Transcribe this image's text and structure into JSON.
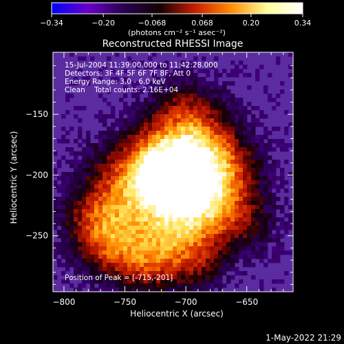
{
  "chart_data": {
    "type": "heatmap",
    "title": "Reconstructed RHESSI Image",
    "xlabel": "Heliocentric X (arcsec)",
    "ylabel": "Heliocentric Y (arcsec)",
    "xlim": [
      -809,
      -612
    ],
    "ylim": [
      -296,
      -99
    ],
    "x_ticks": [
      -800,
      -750,
      -700,
      -650
    ],
    "x_tick_labels": [
      "−800",
      "−750",
      "−700",
      "−650"
    ],
    "y_ticks": [
      -150,
      -200,
      -250
    ],
    "y_tick_labels": [
      "−150",
      "−200",
      "−250"
    ],
    "colorbar": {
      "min": -0.34,
      "max": 0.34,
      "ticks": [
        -0.34,
        -0.2,
        -0.068,
        0.068,
        0.2,
        0.34
      ],
      "tick_labels": [
        "−0.34",
        "−0.20",
        "−0.068",
        "0.068",
        "0.20",
        "0.34"
      ],
      "unit_text": "(photons cm⁻² s⁻¹ asec⁻²)",
      "colors": [
        "#0000ff",
        "#6a00c8",
        "#2a0050",
        "#140005",
        "#c81e00",
        "#ff8c00",
        "#ffff9a",
        "#ffffff"
      ]
    },
    "annotations": [
      "15-Jul-2004 11:39:00.000 to 11:42:28.000",
      "Detectors: 3F 4F 5F 6F 7F 8F, Att 0",
      "Energy Range: 3.0 - 6.0 keV",
      "Clean    Total counts: 2.16E+04"
    ],
    "peak_label": "Position of Peak = [-715,-201]",
    "peak": [
      -715,
      -201
    ],
    "background_color": "#5a2ca0",
    "timestamp": "1-May-2022 21:29"
  }
}
